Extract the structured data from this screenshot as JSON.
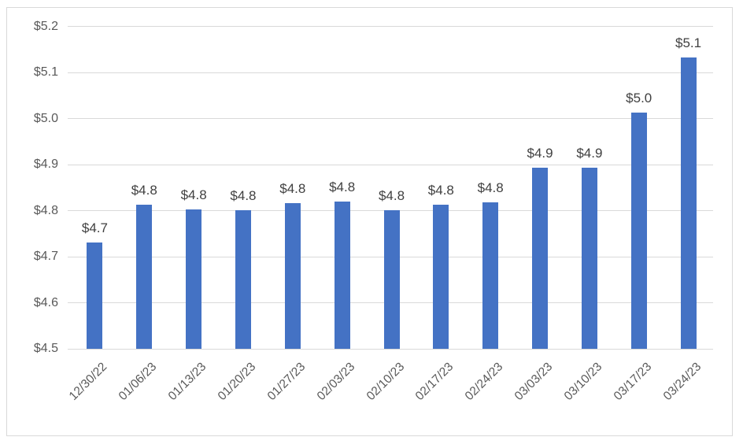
{
  "chart_data": {
    "type": "bar",
    "title": "",
    "xlabel": "",
    "ylabel": "",
    "categories": [
      "12/30/22",
      "01/06/23",
      "01/13/23",
      "01/20/23",
      "01/27/23",
      "02/03/23",
      "02/10/23",
      "02/17/23",
      "02/24/23",
      "03/03/23",
      "03/10/23",
      "03/17/23",
      "03/24/23"
    ],
    "values": [
      4.731,
      4.812,
      4.803,
      4.801,
      4.816,
      4.82,
      4.801,
      4.812,
      4.818,
      4.893,
      4.893,
      5.013,
      5.132
    ],
    "data_labels": [
      "$4.7",
      "$4.8",
      "$4.8",
      "$4.8",
      "$4.8",
      "$4.8",
      "$4.8",
      "$4.8",
      "$4.8",
      "$4.9",
      "$4.9",
      "$5.0",
      "$5.1"
    ],
    "y_ticks": {
      "values": [
        4.5,
        4.6,
        4.7,
        4.8,
        4.9,
        5.0,
        5.1,
        5.2
      ],
      "labels": [
        "$4.5",
        "$4.6",
        "$4.7",
        "$4.8",
        "$4.9",
        "$5.0",
        "$5.1",
        "$5.2"
      ]
    },
    "ylim": [
      4.5,
      5.2
    ],
    "grid": true,
    "legend": false,
    "colors": {
      "bar": "#4472C4",
      "gridline": "#D9D9D9",
      "axis_text": "#595959",
      "data_label_text": "#404040",
      "frame_border": "#D9D9D9"
    }
  }
}
